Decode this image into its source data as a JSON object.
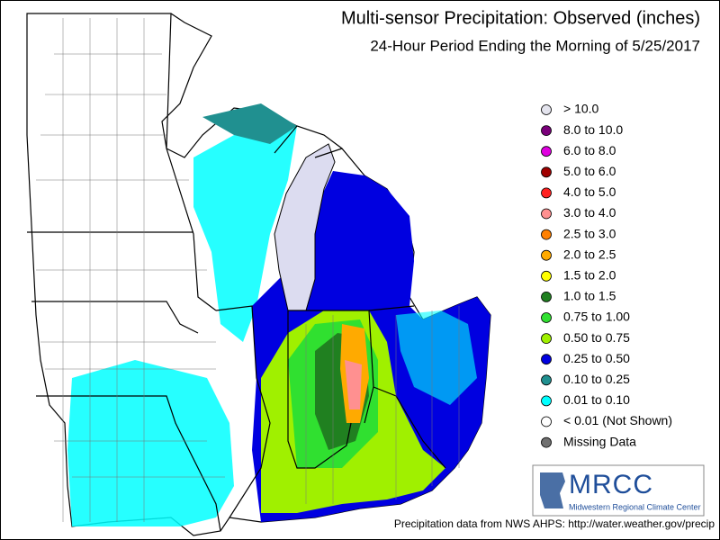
{
  "header": {
    "title": "Multi-sensor Precipitation:  Observed (inches)",
    "subtitle": "24-Hour Period Ending the Morning of 5/25/2017"
  },
  "legend": [
    {
      "label": "> 10.0",
      "color": "#e4e4ee"
    },
    {
      "label": "8.0 to 10.0",
      "color": "#7a007a"
    },
    {
      "label": "6.0 to 8.0",
      "color": "#e000e0"
    },
    {
      "label": "5.0 to 6.0",
      "color": "#a00000"
    },
    {
      "label": "4.0 to 5.0",
      "color": "#ff2020"
    },
    {
      "label": "3.0 to 4.0",
      "color": "#ff9090"
    },
    {
      "label": "2.5 to 3.0",
      "color": "#ff8000"
    },
    {
      "label": "2.0 to 2.5",
      "color": "#ffaa00"
    },
    {
      "label": "1.5 to 2.0",
      "color": "#ffff00"
    },
    {
      "label": "1.0 to 1.5",
      "color": "#208020"
    },
    {
      "label": "0.75 to 1.00",
      "color": "#30e030"
    },
    {
      "label": "0.50 to 0.75",
      "color": "#a0f000"
    },
    {
      "label": "0.25 to 0.50",
      "color": "#0000e0"
    },
    {
      "label": "0.10 to 0.25",
      "color": "#209090"
    },
    {
      "label": "0.01 to 0.10",
      "color": "#00ffff"
    },
    {
      "label": "< 0.01 (Not Shown)",
      "color": "#ffffff"
    },
    {
      "label": "Missing Data",
      "color": "#707070"
    }
  ],
  "logo": {
    "name": "MRCC",
    "full_name": "Midwestern Regional Climate Center"
  },
  "footer": "Precipitation data from NWS AHPS: http://water.weather.gov/precip"
}
